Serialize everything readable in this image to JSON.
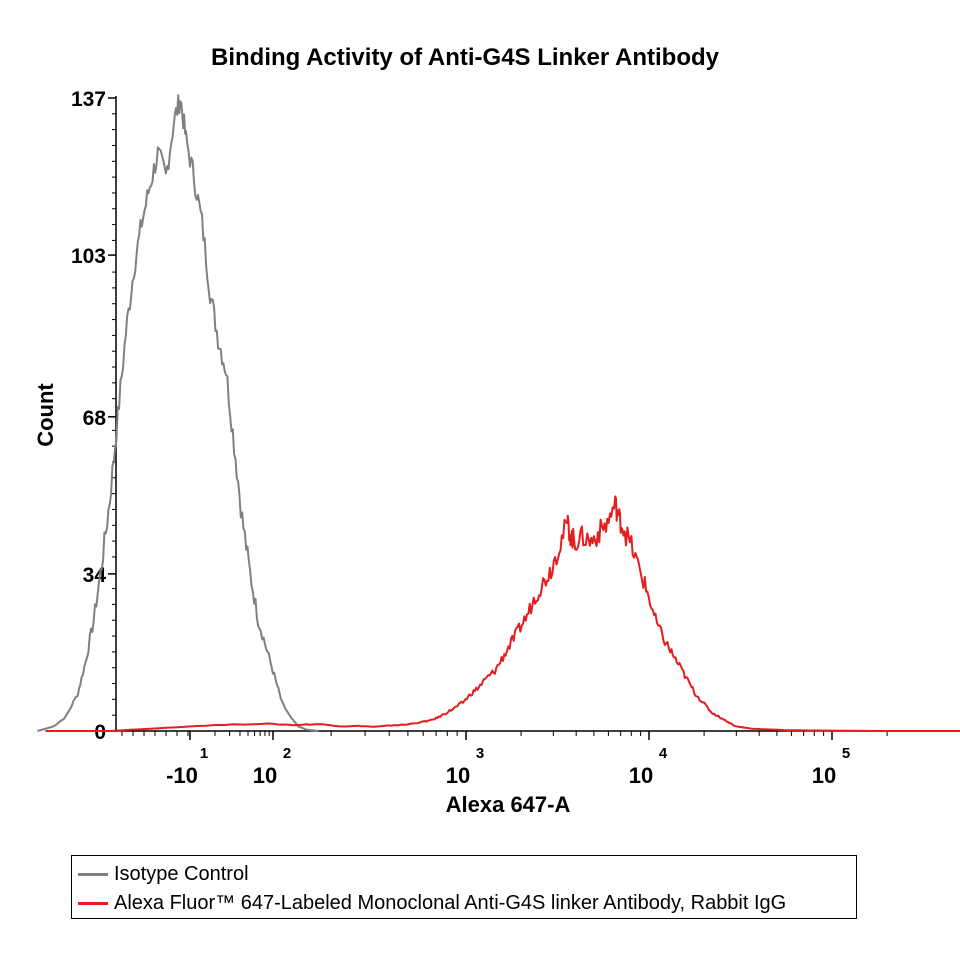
{
  "chart_data": {
    "type": "line",
    "title": "Binding Activity of Anti-G4S Linker Antibody",
    "xlabel": "Alexa 647-A",
    "ylabel": "Count",
    "x_scale": "biexponential",
    "ylim": [
      0,
      137
    ],
    "y_ticks": [
      "0",
      "34",
      "68",
      "103",
      "137"
    ],
    "x_ticks": [
      {
        "base": "-10",
        "exp": "1"
      },
      {
        "base": "10",
        "exp": "2"
      },
      {
        "base": "10",
        "exp": "3"
      },
      {
        "base": "10",
        "exp": "4"
      },
      {
        "base": "10",
        "exp": "5"
      }
    ],
    "grid": false,
    "legend_position": "bottom",
    "series": [
      {
        "name": "Isotype Control",
        "color": "#808080",
        "points": [
          [
            -1.9,
            0
          ],
          [
            -1.7,
            1
          ],
          [
            -1.55,
            3
          ],
          [
            -1.4,
            8
          ],
          [
            -1.3,
            15
          ],
          [
            -1.2,
            24
          ],
          [
            -1.1,
            36
          ],
          [
            -1.0,
            50
          ],
          [
            -0.9,
            68
          ],
          [
            -0.8,
            86
          ],
          [
            -0.7,
            100
          ],
          [
            -0.6,
            110
          ],
          [
            -0.5,
            118
          ],
          [
            -0.4,
            125
          ],
          [
            -0.3,
            120
          ],
          [
            -0.2,
            132
          ],
          [
            -0.12,
            137
          ],
          [
            -0.05,
            128
          ],
          [
            0.05,
            120
          ],
          [
            0.15,
            110
          ],
          [
            0.25,
            95
          ],
          [
            0.35,
            85
          ],
          [
            0.45,
            78
          ],
          [
            0.55,
            62
          ],
          [
            0.65,
            46
          ],
          [
            0.75,
            34
          ],
          [
            0.85,
            24
          ],
          [
            0.95,
            18
          ],
          [
            1.05,
            12
          ],
          [
            1.15,
            6
          ],
          [
            1.25,
            3
          ],
          [
            1.35,
            1
          ],
          [
            1.45,
            0.3
          ],
          [
            1.6,
            0
          ]
        ]
      },
      {
        "name": "Alexa Fluor™ 647-Labeled Monoclonal Anti-G4S linker Antibody, Rabbit IgG",
        "color": "#e41e1e",
        "points": [
          [
            -1.8,
            0
          ],
          [
            -1.0,
            0
          ],
          [
            -0.5,
            0.5
          ],
          [
            0.2,
            1.2
          ],
          [
            0.9,
            1.6
          ],
          [
            1.3,
            1.3
          ],
          [
            1.6,
            1.5
          ],
          [
            1.9,
            1.0
          ],
          [
            2.1,
            1.1
          ],
          [
            2.3,
            0.9
          ],
          [
            2.5,
            1.2
          ],
          [
            2.7,
            1.4
          ],
          [
            2.9,
            2.0
          ],
          [
            3.0,
            2.3
          ],
          [
            3.1,
            3.0
          ],
          [
            3.2,
            4.0
          ],
          [
            3.3,
            5.0
          ],
          [
            3.4,
            6.2
          ],
          [
            3.5,
            8.0
          ],
          [
            3.6,
            9.5
          ],
          [
            3.7,
            11.5
          ],
          [
            3.8,
            13.0
          ],
          [
            3.9,
            16.0
          ],
          [
            4.0,
            19.0
          ],
          [
            4.1,
            22.0
          ],
          [
            4.2,
            25.0
          ],
          [
            4.3,
            29.0
          ],
          [
            4.4,
            32.0
          ],
          [
            4.5,
            35.0
          ],
          [
            4.6,
            40.0
          ],
          [
            4.7,
            45.0
          ],
          [
            4.75,
            42.0
          ],
          [
            4.8,
            41.0
          ],
          [
            4.9,
            42.0
          ],
          [
            5.0,
            41.0
          ],
          [
            5.1,
            43.0
          ],
          [
            5.2,
            45.0
          ],
          [
            5.3,
            49.0
          ],
          [
            5.35,
            46.0
          ],
          [
            5.4,
            44.0
          ],
          [
            5.5,
            40.0
          ],
          [
            5.6,
            35.0
          ],
          [
            5.7,
            30.0
          ],
          [
            5.8,
            24.0
          ],
          [
            5.9,
            20.0
          ],
          [
            6.0,
            17.0
          ],
          [
            6.1,
            14.0
          ],
          [
            6.2,
            11.0
          ],
          [
            6.3,
            8.0
          ],
          [
            6.4,
            6.0
          ],
          [
            6.5,
            4.0
          ],
          [
            6.6,
            3.0
          ],
          [
            6.7,
            2.0
          ],
          [
            6.8,
            1.0
          ],
          [
            7.0,
            0.5
          ],
          [
            7.4,
            0.2
          ],
          [
            7.8,
            0.1
          ],
          [
            8.5,
            0
          ],
          [
            10.5,
            0
          ]
        ]
      }
    ]
  }
}
